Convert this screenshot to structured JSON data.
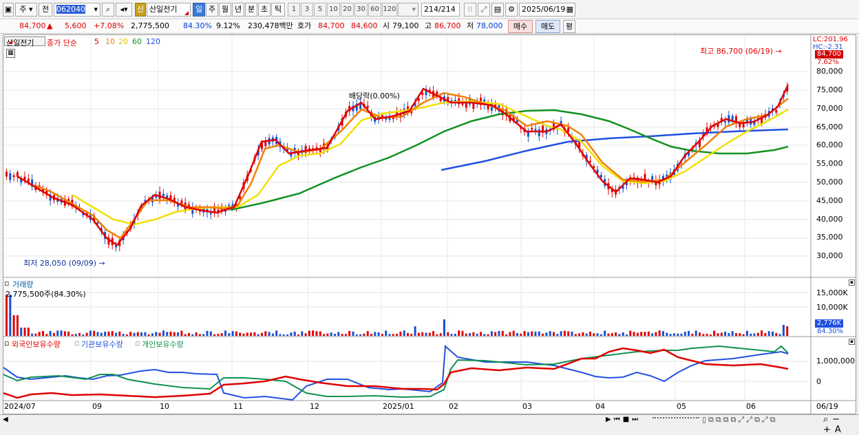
{
  "toolbar": {
    "market_btn": "주",
    "prev_btn": "전",
    "code": "062040",
    "stock_name": "산일전기",
    "badge": "신",
    "periods": [
      "일",
      "주",
      "월",
      "년",
      "분",
      "초",
      "틱"
    ],
    "active_period": "일",
    "numbers": [
      "1",
      "3",
      "5",
      "10",
      "20",
      "30",
      "60",
      "120"
    ],
    "count": "214",
    "count_total": "/214",
    "date": "2025/06/19"
  },
  "quote": {
    "price": "84,700",
    "arrow": "▲",
    "change": "5,600",
    "change_pct": "+7.08%",
    "volume": "2,775,500",
    "vol_ratio": "84.30%",
    "turnover": "9.12%",
    "amount": "230,478백만",
    "ask_label": "호가",
    "ask": "84,700",
    "bid": "84,600",
    "open_label": "시",
    "open": "79,100",
    "high_label": "고",
    "high": "86,700",
    "low_label": "저",
    "low": "78,000",
    "buy_btn": "매수",
    "sell_btn": "매도",
    "eval_btn": "평"
  },
  "price_chart": {
    "stock_tag": "산일전기",
    "legend_main": "종가 단순",
    "ma": [
      "5",
      "10",
      "20",
      "60",
      "120"
    ],
    "ma_colors": [
      "#e00000",
      "#f08000",
      "#f0e000",
      "#109020",
      "#2050e0"
    ],
    "lc": "LC:201.96",
    "hc": "HC:-2.31",
    "price_tag": "84,700",
    "pct_tag": "7.62%",
    "high_label": "최고 86,700 (06/19)",
    "low_label": "최저 28,050 (09/09)",
    "dividend_label": "배당락(0.00%)",
    "y_ticks": [
      "80,000",
      "75,000",
      "70,000",
      "65,000",
      "60,000",
      "55,000",
      "50,000",
      "45,000",
      "40,000",
      "35,000",
      "30,000"
    ]
  },
  "volume_chart": {
    "title": "거래량",
    "value_label": "2,775,500주(84.30%)",
    "y_ticks": [
      "15,000K",
      "10,000K"
    ],
    "tag": "2,776K",
    "pct": "84.30%"
  },
  "holdings_chart": {
    "legend": [
      "외국인보유수량",
      "기관보유수량",
      "개인보유수량"
    ],
    "legend_colors": [
      "#e00000",
      "#2050e0",
      "#109050"
    ],
    "y_ticks": [
      "1,000,000",
      "0"
    ]
  },
  "x_axis": [
    "2024/07",
    "09",
    "10",
    "11",
    "12",
    "2025/01",
    "02",
    "03",
    "04",
    "05",
    "06",
    "06/19"
  ]
}
